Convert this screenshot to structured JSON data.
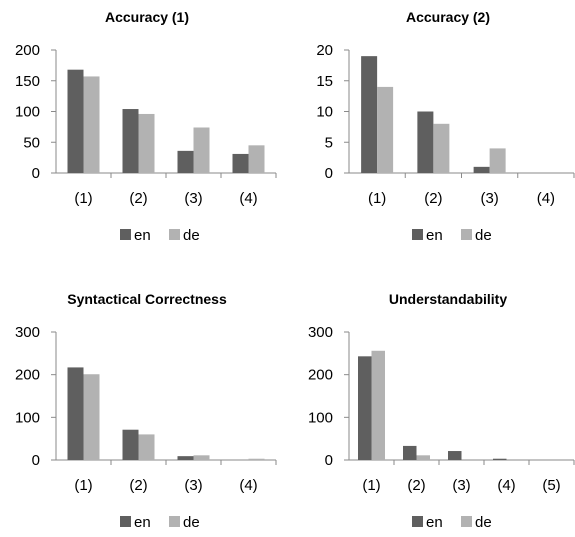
{
  "chart_data": [
    {
      "type": "bar",
      "title": "Accuracy (1)",
      "categories": [
        "(1)",
        "(2)",
        "(3)",
        "(4)"
      ],
      "series": [
        {
          "name": "en",
          "values": [
            168,
            104,
            36,
            31
          ]
        },
        {
          "name": "de",
          "values": [
            157,
            96,
            74,
            45
          ]
        }
      ],
      "ylim": [
        0,
        200
      ],
      "yticks": [
        0,
        50,
        100,
        150,
        200
      ],
      "legend": "bottom",
      "grid": false
    },
    {
      "type": "bar",
      "title": "Accuracy (2)",
      "categories": [
        "(1)",
        "(2)",
        "(3)",
        "(4)"
      ],
      "series": [
        {
          "name": "en",
          "values": [
            19,
            10,
            1,
            0
          ]
        },
        {
          "name": "de",
          "values": [
            14,
            8,
            4,
            0
          ]
        }
      ],
      "ylim": [
        0,
        20
      ],
      "yticks": [
        0,
        5,
        10,
        15,
        20
      ],
      "legend": "bottom",
      "grid": false
    },
    {
      "type": "bar",
      "title": "Syntactical Correctness",
      "categories": [
        "(1)",
        "(2)",
        "(3)",
        "(4)"
      ],
      "series": [
        {
          "name": "en",
          "values": [
            217,
            71,
            9,
            0
          ]
        },
        {
          "name": "de",
          "values": [
            201,
            60,
            11,
            3
          ]
        }
      ],
      "ylim": [
        0,
        300
      ],
      "yticks": [
        0,
        100,
        200,
        300
      ],
      "legend": "bottom",
      "grid": false
    },
    {
      "type": "bar",
      "title": "Understandability",
      "categories": [
        "(1)",
        "(2)",
        "(3)",
        "(4)",
        "(5)"
      ],
      "series": [
        {
          "name": "en",
          "values": [
            243,
            33,
            21,
            3,
            0
          ]
        },
        {
          "name": "de",
          "values": [
            256,
            11,
            0,
            0,
            0
          ]
        }
      ],
      "ylim": [
        0,
        300
      ],
      "yticks": [
        0,
        100,
        200,
        300
      ],
      "legend": "bottom",
      "grid": false
    }
  ],
  "colors": {
    "en": "#5f5f5f",
    "de": "#b2b2b2",
    "axis": "#8a8a8a"
  }
}
